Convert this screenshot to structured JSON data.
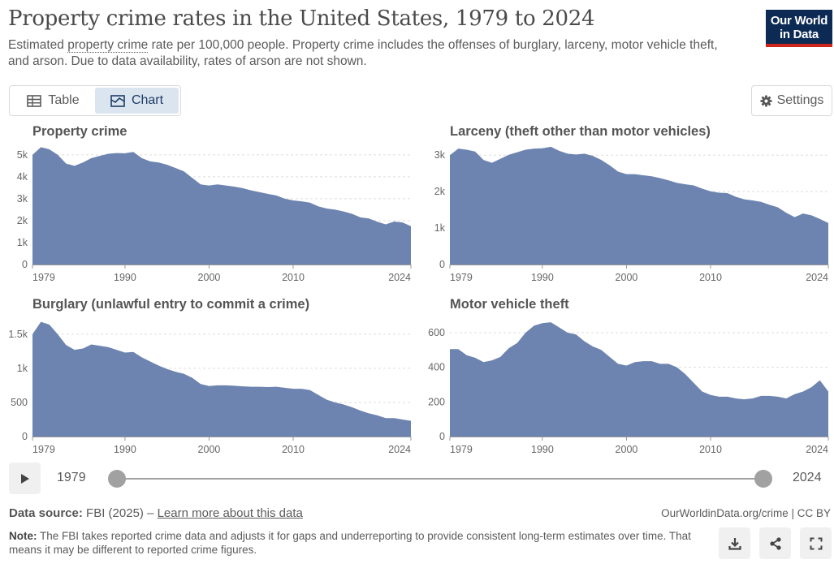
{
  "header": {
    "title": "Property crime rates in the United States, 1979 to 2024",
    "subtitle_pre": "Estimated ",
    "subtitle_term": "property crime",
    "subtitle_post": " rate per 100,000 people. Property crime includes the offenses of burglary, larceny, motor vehicle theft, and arson. Due to data availability, rates of arson are not shown.",
    "logo_line1": "Our World",
    "logo_line2": "in Data"
  },
  "tabs": [
    {
      "label": "Table",
      "icon": "table-icon"
    },
    {
      "label": "Chart",
      "icon": "chart-icon"
    }
  ],
  "settings_label": "Settings",
  "timeline": {
    "start": "1979",
    "end": "2024",
    "start_value": 1979,
    "end_value": 2024
  },
  "footer": {
    "source_label": "Data source:",
    "source_text": "FBI (2025) – ",
    "source_link": "Learn more about this data",
    "credit": "OurWorldinData.org/crime | CC BY",
    "note_label": "Note:",
    "note_text": "The FBI takes reported crime data and adjusts it for gaps and underreporting to provide consistent long-term estimates over time. That means it may be different to reported crime figures."
  },
  "colors": {
    "area": "#6d84b0",
    "accent": "#ce261e",
    "brand": "#0c2a54"
  },
  "chart_data": [
    {
      "type": "area",
      "title": "Property crime",
      "x": [
        1979,
        1980,
        1981,
        1982,
        1983,
        1984,
        1985,
        1986,
        1987,
        1988,
        1989,
        1990,
        1991,
        1992,
        1993,
        1994,
        1995,
        1996,
        1997,
        1998,
        1999,
        2000,
        2001,
        2002,
        2003,
        2004,
        2005,
        2006,
        2007,
        2008,
        2009,
        2010,
        2011,
        2012,
        2013,
        2014,
        2015,
        2016,
        2017,
        2018,
        2019,
        2020,
        2021,
        2022,
        2023,
        2024
      ],
      "values": [
        5000,
        5350,
        5250,
        5000,
        4600,
        4500,
        4650,
        4850,
        4950,
        5050,
        5080,
        5070,
        5130,
        4850,
        4700,
        4650,
        4550,
        4400,
        4250,
        3950,
        3650,
        3600,
        3650,
        3600,
        3550,
        3480,
        3380,
        3300,
        3220,
        3150,
        3000,
        2920,
        2880,
        2820,
        2650,
        2550,
        2500,
        2420,
        2310,
        2150,
        2100,
        1950,
        1830,
        1960,
        1920,
        1750
      ],
      "xticks": [
        "1979",
        "1990",
        "2000",
        "2010",
        "2024"
      ],
      "yticks": [
        "0",
        "1k",
        "2k",
        "3k",
        "4k",
        "5k"
      ],
      "ytick_values": [
        0,
        1000,
        2000,
        3000,
        4000,
        5000
      ],
      "ylim": [
        0,
        5400
      ]
    },
    {
      "type": "area",
      "title": "Larceny (theft other than motor vehicles)",
      "x": [
        1979,
        1980,
        1981,
        1982,
        1983,
        1984,
        1985,
        1986,
        1987,
        1988,
        1989,
        1990,
        1991,
        1992,
        1993,
        1994,
        1995,
        1996,
        1997,
        1998,
        1999,
        2000,
        2001,
        2002,
        2003,
        2004,
        2005,
        2006,
        2007,
        2008,
        2009,
        2010,
        2011,
        2012,
        2013,
        2014,
        2015,
        2016,
        2017,
        2018,
        2019,
        2020,
        2021,
        2022,
        2023,
        2024
      ],
      "values": [
        3000,
        3180,
        3150,
        3100,
        2870,
        2790,
        2900,
        3010,
        3080,
        3150,
        3180,
        3190,
        3230,
        3120,
        3040,
        3020,
        3040,
        2980,
        2870,
        2720,
        2550,
        2480,
        2480,
        2450,
        2420,
        2370,
        2310,
        2240,
        2200,
        2170,
        2080,
        2010,
        1970,
        1960,
        1860,
        1790,
        1760,
        1720,
        1640,
        1570,
        1420,
        1300,
        1400,
        1350,
        1250,
        1140
      ],
      "xticks": [
        "1979",
        "1990",
        "2000",
        "2010",
        "2024"
      ],
      "yticks": [
        "0",
        "1k",
        "2k",
        "3k"
      ],
      "ytick_values": [
        0,
        1000,
        2000,
        3000
      ],
      "ylim": [
        0,
        3250
      ]
    },
    {
      "type": "area",
      "title": "Burglary (unlawful entry to commit a crime)",
      "x": [
        1979,
        1980,
        1981,
        1982,
        1983,
        1984,
        1985,
        1986,
        1987,
        1988,
        1989,
        1990,
        1991,
        1992,
        1993,
        1994,
        1995,
        1996,
        1997,
        1998,
        1999,
        2000,
        2001,
        2002,
        2003,
        2004,
        2005,
        2006,
        2007,
        2008,
        2009,
        2010,
        2011,
        2012,
        2013,
        2014,
        2015,
        2016,
        2017,
        2018,
        2019,
        2020,
        2021,
        2022,
        2023,
        2024
      ],
      "values": [
        1500,
        1680,
        1640,
        1500,
        1340,
        1270,
        1290,
        1350,
        1330,
        1310,
        1270,
        1230,
        1240,
        1160,
        1100,
        1040,
        990,
        950,
        920,
        860,
        770,
        740,
        750,
        750,
        745,
        735,
        730,
        730,
        725,
        730,
        715,
        700,
        700,
        680,
        610,
        540,
        500,
        470,
        430,
        380,
        340,
        310,
        270,
        270,
        250,
        230
      ],
      "xticks": [
        "1979",
        "1990",
        "2000",
        "2010",
        "2024"
      ],
      "yticks": [
        "0",
        "500",
        "1k",
        "1.5k"
      ],
      "ytick_values": [
        0,
        500,
        1000,
        1500
      ],
      "ylim": [
        0,
        1700
      ]
    },
    {
      "type": "area",
      "title": "Motor vehicle theft",
      "x": [
        1979,
        1980,
        1981,
        1982,
        1983,
        1984,
        1985,
        1986,
        1987,
        1988,
        1989,
        1990,
        1991,
        1992,
        1993,
        1994,
        1995,
        1996,
        1997,
        1998,
        1999,
        2000,
        2001,
        2002,
        2003,
        2004,
        2005,
        2006,
        2007,
        2008,
        2009,
        2010,
        2011,
        2012,
        2013,
        2014,
        2015,
        2016,
        2017,
        2018,
        2019,
        2020,
        2021,
        2022,
        2023,
        2024
      ],
      "values": [
        505,
        505,
        470,
        455,
        430,
        440,
        460,
        510,
        540,
        600,
        640,
        655,
        660,
        630,
        600,
        590,
        550,
        520,
        500,
        460,
        420,
        410,
        430,
        435,
        435,
        420,
        420,
        400,
        360,
        310,
        260,
        240,
        230,
        230,
        220,
        215,
        220,
        235,
        235,
        230,
        220,
        245,
        260,
        285,
        325,
        260
      ],
      "xticks": [
        "1979",
        "1990",
        "2000",
        "2010",
        "2024"
      ],
      "yticks": [
        "0",
        "200",
        "400",
        "600"
      ],
      "ytick_values": [
        0,
        200,
        400,
        600
      ],
      "ylim": [
        0,
        670
      ]
    }
  ]
}
